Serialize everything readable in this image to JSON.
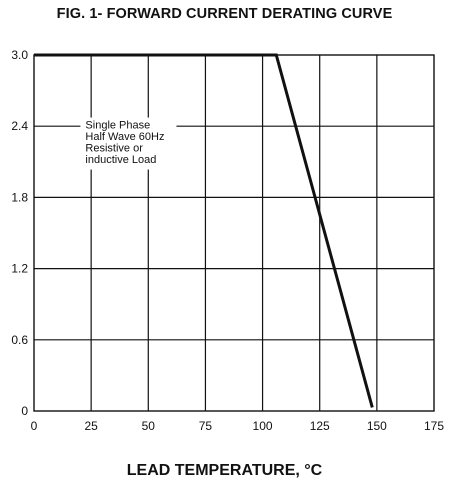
{
  "chart_data": {
    "type": "line",
    "title": "FIG. 1- FORWARD CURRENT DERATING CURVE",
    "xlabel": "LEAD TEMPERATURE, °C",
    "ylabel": "",
    "xlim": [
      0,
      175
    ],
    "ylim": [
      0,
      3.0
    ],
    "x_ticks": [
      "0",
      "25",
      "50",
      "75",
      "100",
      "125",
      "150",
      "175"
    ],
    "y_ticks": [
      "0",
      "0.6",
      "1.2",
      "1.8",
      "2.4",
      "3.0"
    ],
    "grid": true,
    "series": [
      {
        "x": [
          0,
          106,
          148
        ],
        "y": [
          3.0,
          3.0,
          0.03
        ]
      }
    ],
    "annotation": {
      "lines": [
        "Single Phase",
        "Half Wave 60Hz",
        "Resistive or",
        "inductive Load"
      ],
      "x": 12,
      "y": 2.38
    }
  }
}
